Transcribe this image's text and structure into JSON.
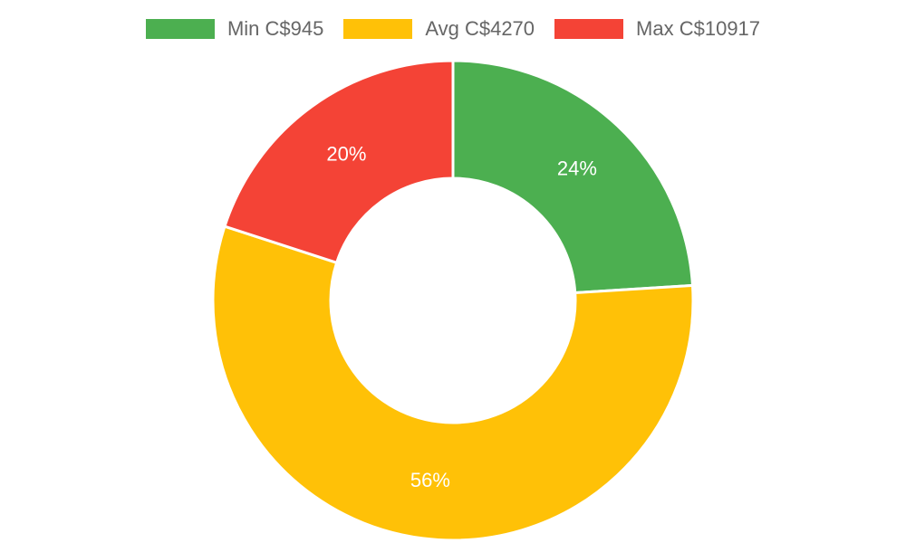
{
  "chart_data": {
    "type": "pie",
    "variant": "doughnut",
    "categories": [
      "Min C$945",
      "Avg C$4270",
      "Max C$10917"
    ],
    "values": [
      24,
      56,
      20
    ],
    "value_labels": [
      "24%",
      "56%",
      "20%"
    ],
    "colors": [
      "#4caf50",
      "#ffc107",
      "#f44336"
    ],
    "legend": "top"
  }
}
